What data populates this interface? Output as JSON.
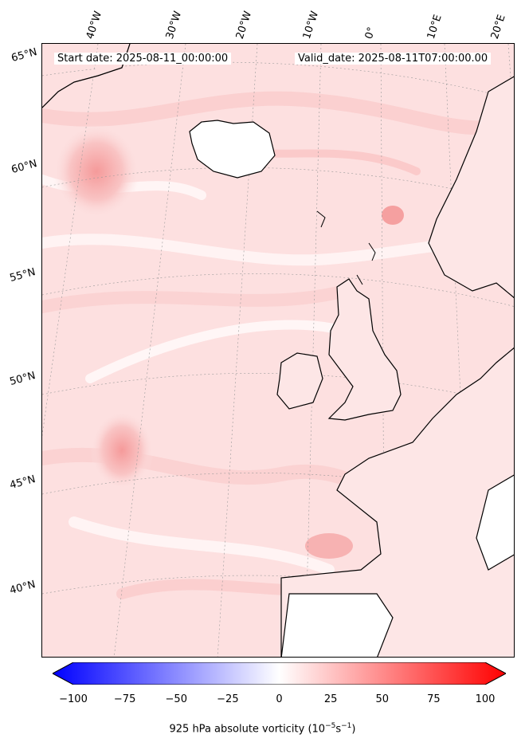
{
  "header": {
    "start_date": "Start date: 2025-08-11_00:00:00",
    "valid_date": "Valid_date: 2025-08-11T07:00:00.00"
  },
  "longitude_labels": [
    "40°W",
    "30°W",
    "20°W",
    "10°W",
    "0°",
    "10°E",
    "20°E"
  ],
  "latitude_labels": [
    "65°N",
    "60°N",
    "55°N",
    "50°N",
    "45°N",
    "40°N"
  ],
  "colorbar": {
    "colormap": "bwr",
    "min": -100,
    "max": 100,
    "ticks": [
      "−100",
      "−75",
      "−50",
      "−25",
      "0",
      "25",
      "50",
      "75",
      "100"
    ],
    "tick_values": [
      -100,
      -75,
      -50,
      -25,
      0,
      25,
      50,
      75,
      100
    ],
    "label_prefix": "925 hPa absolute vorticity (10",
    "label_exp1": "−5",
    "label_mid": "s",
    "label_exp2": "−1",
    "label_suffix": ")"
  },
  "colors": {
    "negative_end": "#0000ff",
    "zero": "#ffffff",
    "positive_end": "#ff0000",
    "coastline": "#000000"
  }
}
